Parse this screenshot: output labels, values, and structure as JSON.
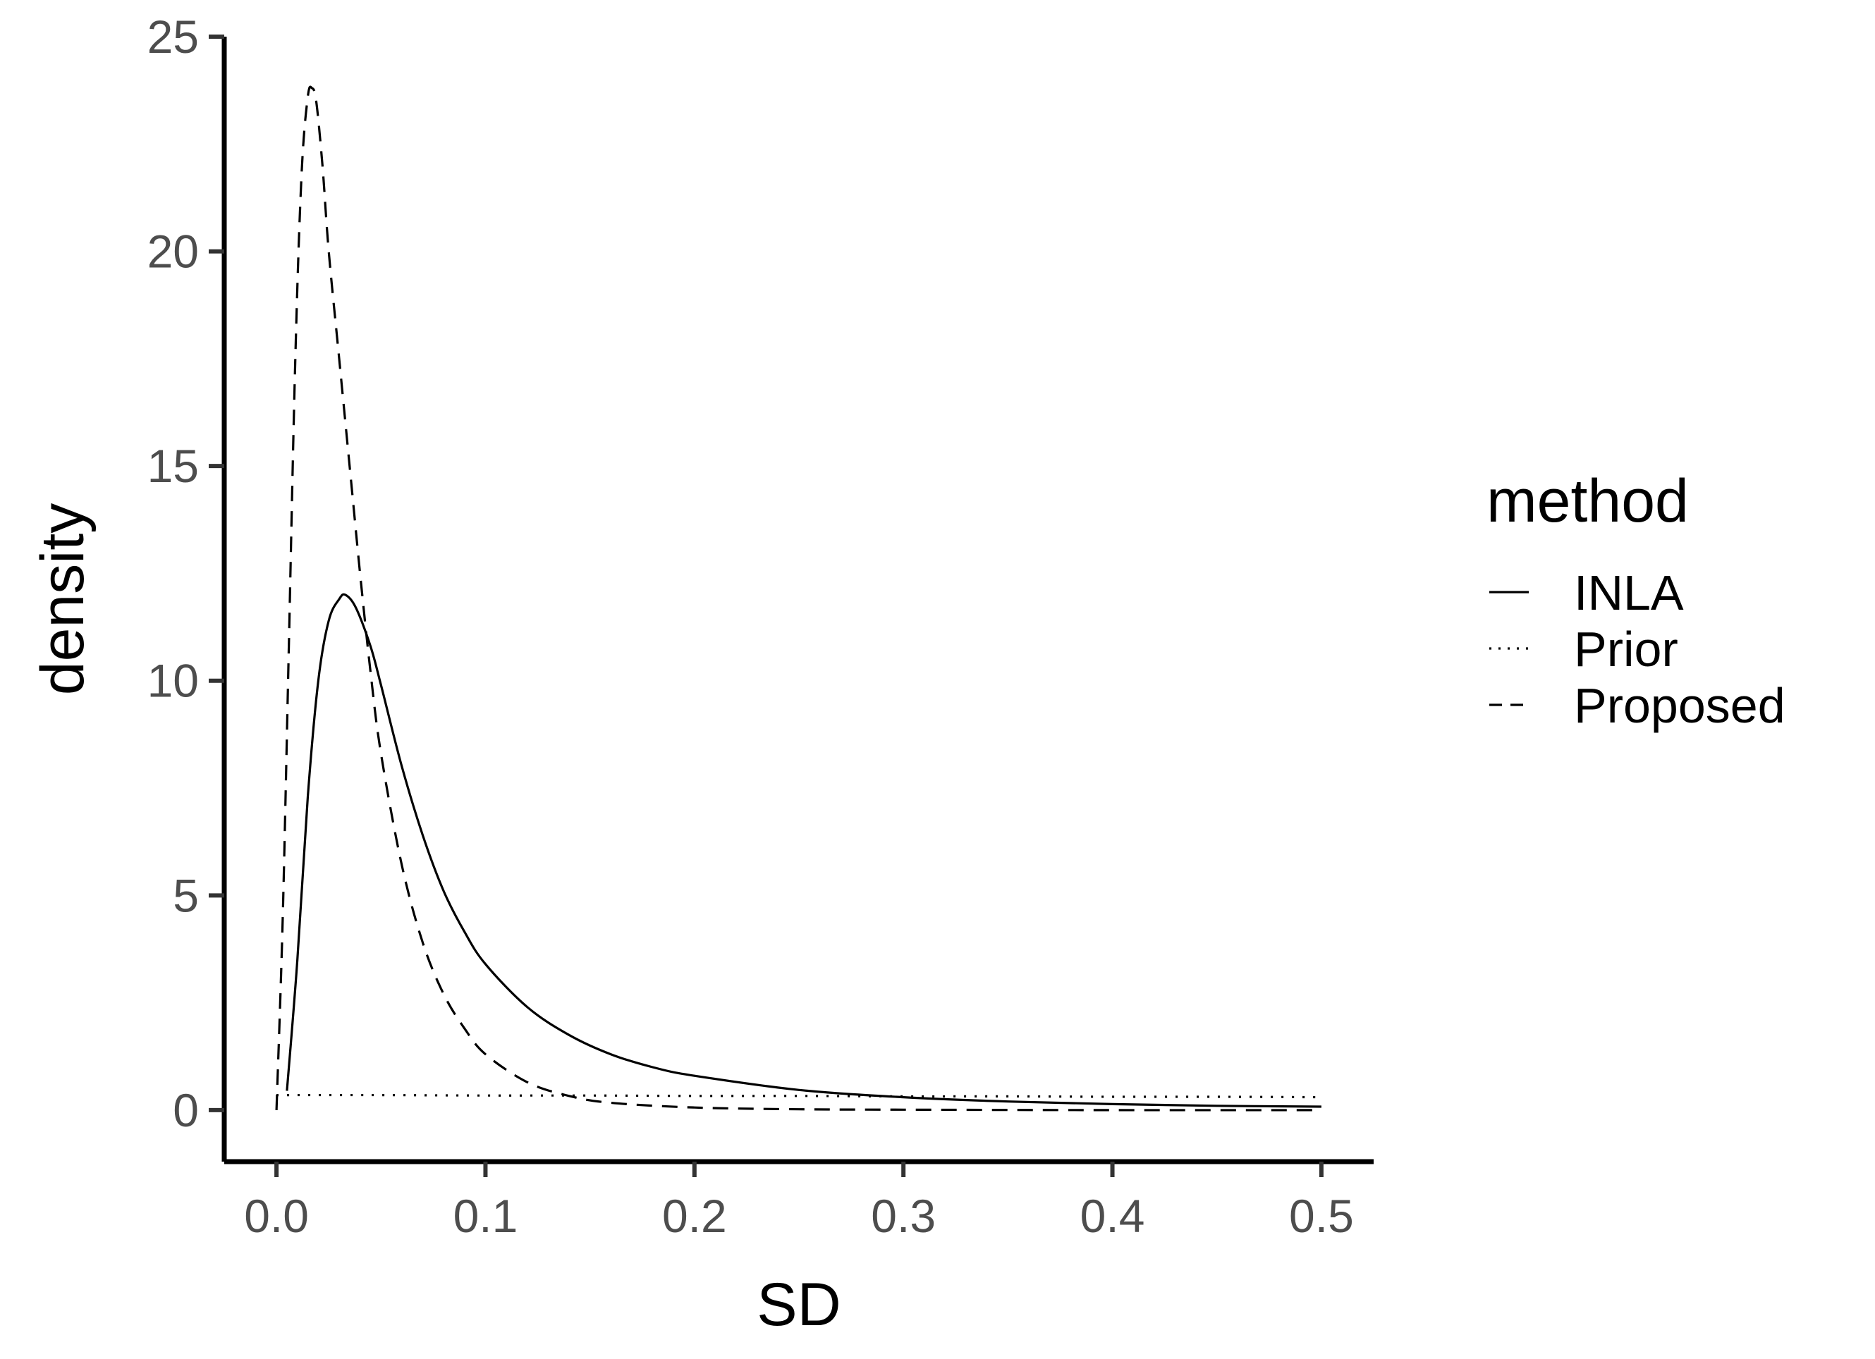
{
  "chart_data": {
    "type": "line",
    "xlabel": "SD",
    "ylabel": "density",
    "xlim": [
      -0.025,
      0.525
    ],
    "ylim": [
      -1.2,
      25
    ],
    "x_ticks": [
      0.0,
      0.1,
      0.2,
      0.3,
      0.4,
      0.5
    ],
    "x_tick_labels": [
      "0.0",
      "0.1",
      "0.2",
      "0.3",
      "0.4",
      "0.5"
    ],
    "y_ticks": [
      0,
      5,
      10,
      15,
      20,
      25
    ],
    "y_tick_labels": [
      "0",
      "5",
      "10",
      "15",
      "20",
      "25"
    ],
    "grid": false,
    "legend": {
      "title": "method",
      "position": "right",
      "items": [
        {
          "label": "INLA",
          "linetype": "solid"
        },
        {
          "label": "Prior",
          "linetype": "dotted"
        },
        {
          "label": "Proposed",
          "linetype": "dashed"
        }
      ]
    },
    "series": [
      {
        "name": "INLA",
        "linetype": "solid",
        "color": "#000000",
        "points": [
          [
            0.005,
            0.45
          ],
          [
            0.01,
            3.5
          ],
          [
            0.015,
            7.3
          ],
          [
            0.02,
            10.0
          ],
          [
            0.025,
            11.4
          ],
          [
            0.03,
            11.9
          ],
          [
            0.033,
            12.0
          ],
          [
            0.038,
            11.7
          ],
          [
            0.045,
            10.8
          ],
          [
            0.05,
            9.9
          ],
          [
            0.06,
            8.0
          ],
          [
            0.07,
            6.4
          ],
          [
            0.08,
            5.1
          ],
          [
            0.09,
            4.15
          ],
          [
            0.1,
            3.4
          ],
          [
            0.12,
            2.4
          ],
          [
            0.14,
            1.75
          ],
          [
            0.16,
            1.3
          ],
          [
            0.18,
            1.0
          ],
          [
            0.2,
            0.8
          ],
          [
            0.25,
            0.47
          ],
          [
            0.3,
            0.3
          ],
          [
            0.35,
            0.2
          ],
          [
            0.4,
            0.14
          ],
          [
            0.45,
            0.1
          ],
          [
            0.5,
            0.08
          ]
        ]
      },
      {
        "name": "Prior",
        "linetype": "dotted",
        "color": "#000000",
        "points": [
          [
            0.0,
            0.35
          ],
          [
            0.05,
            0.35
          ],
          [
            0.1,
            0.34
          ],
          [
            0.15,
            0.34
          ],
          [
            0.2,
            0.33
          ],
          [
            0.25,
            0.33
          ],
          [
            0.3,
            0.32
          ],
          [
            0.35,
            0.32
          ],
          [
            0.4,
            0.31
          ],
          [
            0.45,
            0.31
          ],
          [
            0.5,
            0.3
          ]
        ]
      },
      {
        "name": "Proposed",
        "linetype": "dashed",
        "color": "#000000",
        "points": [
          [
            0.0,
            0.0
          ],
          [
            0.003,
            4.5
          ],
          [
            0.006,
            11.0
          ],
          [
            0.009,
            17.5
          ],
          [
            0.012,
            21.8
          ],
          [
            0.015,
            23.6
          ],
          [
            0.017,
            23.8
          ],
          [
            0.019,
            23.5
          ],
          [
            0.022,
            22.0
          ],
          [
            0.025,
            20.0
          ],
          [
            0.03,
            17.5
          ],
          [
            0.035,
            15.0
          ],
          [
            0.04,
            12.5
          ],
          [
            0.045,
            10.2
          ],
          [
            0.05,
            8.3
          ],
          [
            0.06,
            5.7
          ],
          [
            0.07,
            3.9
          ],
          [
            0.08,
            2.7
          ],
          [
            0.09,
            1.9
          ],
          [
            0.1,
            1.3
          ],
          [
            0.12,
            0.65
          ],
          [
            0.14,
            0.33
          ],
          [
            0.16,
            0.17
          ],
          [
            0.2,
            0.06
          ],
          [
            0.25,
            0.02
          ],
          [
            0.3,
            0.01
          ],
          [
            0.4,
            0.0
          ],
          [
            0.5,
            0.0
          ]
        ]
      }
    ]
  }
}
